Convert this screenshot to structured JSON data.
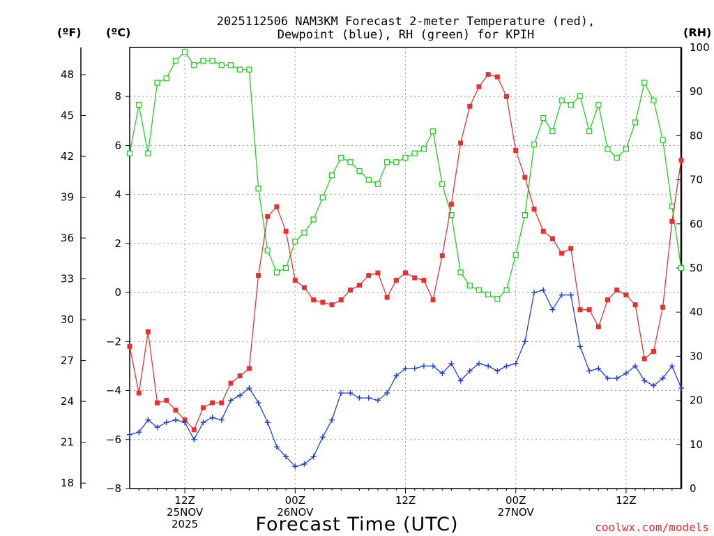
{
  "title_line1": "2025112506 NAM3KM Forecast 2-meter Temperature (red),",
  "title_line2": "Dewpoint (blue), RH (green) for KPIH",
  "units": {
    "f": "(ºF)",
    "c": "(ºC)",
    "rh": "(RH)"
  },
  "xlabel": "Forecast Time (UTC)",
  "credit": "coolwx.com/models",
  "x_ticks": [
    {
      "t": 6,
      "lines": [
        "12Z",
        "25NOV",
        "2025"
      ]
    },
    {
      "t": 18,
      "lines": [
        "00Z",
        "26NOV"
      ]
    },
    {
      "t": 30,
      "lines": [
        "12Z"
      ]
    },
    {
      "t": 42,
      "lines": [
        "00Z",
        "27NOV"
      ]
    },
    {
      "t": 54,
      "lines": [
        "12Z"
      ]
    }
  ],
  "colors": {
    "temperature": "#e83030",
    "dewpoint": "#1e3ee0",
    "rh": "#20d020"
  },
  "chart_data": {
    "type": "line",
    "title": "2025112506 NAM3KM Forecast 2-meter Temperature (red), Dewpoint (blue), RH (green) for KPIH",
    "xlabel": "Forecast Time (UTC)",
    "x_unit": "forecast hour from 2025-11-25 06Z",
    "xlim": [
      0,
      60
    ],
    "y_left_c": {
      "label": "(ºC)",
      "range": [
        -8,
        10
      ],
      "ticks": [
        -8,
        -6,
        -4,
        -2,
        0,
        2,
        4,
        6,
        8
      ]
    },
    "y_left_f": {
      "label": "(ºF)",
      "range": [
        17.6,
        50
      ],
      "ticks": [
        18,
        21,
        24,
        27,
        30,
        33,
        36,
        39,
        42,
        45,
        48
      ]
    },
    "y_right_rh": {
      "label": "(RH)",
      "range": [
        0,
        100
      ],
      "ticks": [
        0,
        10,
        20,
        30,
        40,
        50,
        60,
        70,
        80,
        90,
        100
      ]
    },
    "x": [
      0,
      1,
      2,
      3,
      4,
      5,
      6,
      7,
      8,
      9,
      10,
      11,
      12,
      13,
      14,
      15,
      16,
      17,
      18,
      19,
      20,
      21,
      22,
      23,
      24,
      25,
      26,
      27,
      28,
      29,
      30,
      31,
      32,
      33,
      34,
      35,
      36,
      37,
      38,
      39,
      40,
      41,
      42,
      43,
      44,
      45,
      46,
      47,
      48,
      49,
      50,
      51,
      52,
      53,
      54,
      55,
      56,
      57,
      58,
      59,
      60
    ],
    "series": [
      {
        "name": "Temperature (°C)",
        "axis": "c",
        "color": "red",
        "values": [
          -2.2,
          -4.1,
          -1.6,
          -4.5,
          -4.4,
          -4.8,
          -5.2,
          -5.6,
          -4.7,
          -4.5,
          -4.5,
          -3.7,
          -3.4,
          -3.1,
          0.7,
          3.1,
          3.5,
          2.5,
          0.5,
          0.2,
          -0.3,
          -0.4,
          -0.5,
          -0.3,
          0.1,
          0.3,
          0.7,
          0.8,
          -0.2,
          0.5,
          0.8,
          0.6,
          0.5,
          -0.3,
          1.5,
          3.6,
          6.1,
          7.6,
          8.4,
          8.9,
          8.8,
          8.0,
          5.8,
          4.7,
          3.4,
          2.5,
          2.2,
          1.6,
          1.8,
          -0.7,
          -0.7,
          -1.4,
          -0.3,
          0.1,
          -0.1,
          -0.5,
          -2.7,
          -2.4,
          -0.6,
          2.9,
          5.4
        ]
      },
      {
        "name": "Dewpoint (°C)",
        "axis": "c",
        "color": "blue",
        "values": [
          -5.8,
          -5.7,
          -5.2,
          -5.5,
          -5.3,
          -5.2,
          -5.3,
          -6.0,
          -5.3,
          -5.1,
          -5.2,
          -4.4,
          -4.2,
          -3.9,
          -4.5,
          -5.3,
          -6.3,
          -6.7,
          -7.1,
          -7.0,
          -6.7,
          -5.9,
          -5.2,
          -4.1,
          -4.1,
          -4.3,
          -4.3,
          -4.4,
          -4.1,
          -3.4,
          -3.1,
          -3.1,
          -3.0,
          -3.0,
          -3.3,
          -2.9,
          -3.6,
          -3.2,
          -2.9,
          -3.0,
          -3.2,
          -3.0,
          -2.9,
          -2.0,
          0.0,
          0.1,
          -0.7,
          -0.1,
          -0.1,
          -2.2,
          -3.2,
          -3.1,
          -3.5,
          -3.5,
          -3.3,
          -3.0,
          -3.6,
          -3.8,
          -3.5,
          -3.0,
          -3.9
        ]
      },
      {
        "name": "RH (%)",
        "axis": "rh",
        "color": "green",
        "values": [
          76,
          87,
          76,
          92,
          93,
          97,
          99,
          96,
          97,
          97,
          96,
          96,
          95,
          95,
          68,
          54,
          49,
          50,
          56,
          58,
          61,
          66,
          71,
          75,
          74,
          72,
          70,
          69,
          74,
          74,
          75,
          76,
          77,
          81,
          69,
          62,
          49,
          46,
          45,
          44,
          43,
          45,
          53,
          62,
          78,
          84,
          81,
          88,
          87,
          89,
          81,
          87,
          77,
          75,
          77,
          83,
          92,
          88,
          79,
          64,
          50
        ]
      }
    ]
  }
}
